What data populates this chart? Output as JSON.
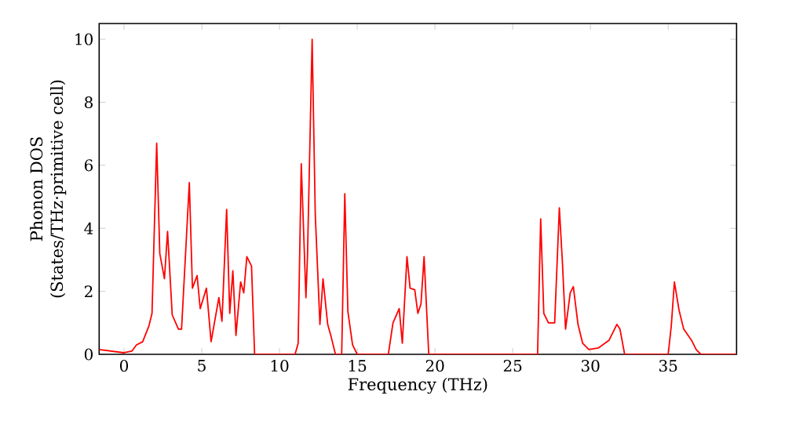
{
  "chart_data": {
    "type": "line",
    "xlabel": "Frequency (THz)",
    "ylabel": "Phonon DOS\n(States/THz·primitive cell)",
    "xlim": [
      -1.6,
      39.4
    ],
    "ylim": [
      0,
      10.5
    ],
    "xticks": [
      0,
      5,
      10,
      15,
      20,
      25,
      30,
      35
    ],
    "yticks": [
      0,
      2,
      4,
      6,
      8,
      10
    ],
    "series": [
      {
        "color": "#ff0000",
        "x": [
          -1.6,
          0,
          0.5,
          0.8,
          1.2,
          1.6,
          1.8,
          2.1,
          2.3,
          2.6,
          2.8,
          3.1,
          3.5,
          3.7,
          4.2,
          4.4,
          4.7,
          4.9,
          5.3,
          5.6,
          6.1,
          6.3,
          6.6,
          6.8,
          7.0,
          7.2,
          7.5,
          7.7,
          7.9,
          8.2,
          8.4,
          11.0,
          11.2,
          11.4,
          11.7,
          11.8,
          12.1,
          12.3,
          12.6,
          12.8,
          13.1,
          13.3,
          13.6,
          14.0,
          14.2,
          14.4,
          14.7,
          15.0,
          17.0,
          17.3,
          17.7,
          17.9,
          18.2,
          18.4,
          18.7,
          18.9,
          19.1,
          19.3,
          19.6,
          26.6,
          26.8,
          27.0,
          27.3,
          27.7,
          28.0,
          28.2,
          28.4,
          28.7,
          28.9,
          29.2,
          29.5,
          29.9,
          30.5,
          31.2,
          31.5,
          31.7,
          31.9,
          32.2,
          35.0,
          35.2,
          35.4,
          35.7,
          36.0,
          36.5,
          36.8,
          37.1,
          39.4
        ],
        "values": [
          0.15,
          0.05,
          0.1,
          0.3,
          0.4,
          0.9,
          1.3,
          6.7,
          3.2,
          2.4,
          3.9,
          1.25,
          0.8,
          0.8,
          5.45,
          2.1,
          2.5,
          1.45,
          2.1,
          0.4,
          1.8,
          1.05,
          4.6,
          1.3,
          2.65,
          0.6,
          2.3,
          1.95,
          3.1,
          2.8,
          0,
          0,
          0.35,
          6.05,
          1.8,
          3.1,
          10.0,
          4.45,
          0.95,
          2.4,
          0.95,
          0.6,
          0,
          0,
          5.1,
          1.35,
          0.3,
          0,
          0,
          1.0,
          1.45,
          0.35,
          3.1,
          2.1,
          2.05,
          1.3,
          1.6,
          3.1,
          0,
          0,
          4.3,
          1.3,
          1.0,
          1.0,
          4.65,
          2.9,
          0.8,
          1.95,
          2.15,
          0.95,
          0.35,
          0.15,
          0.2,
          0.45,
          0.75,
          0.95,
          0.8,
          0,
          0,
          0.9,
          2.3,
          1.4,
          0.8,
          0.45,
          0.15,
          0,
          0
        ]
      }
    ]
  }
}
